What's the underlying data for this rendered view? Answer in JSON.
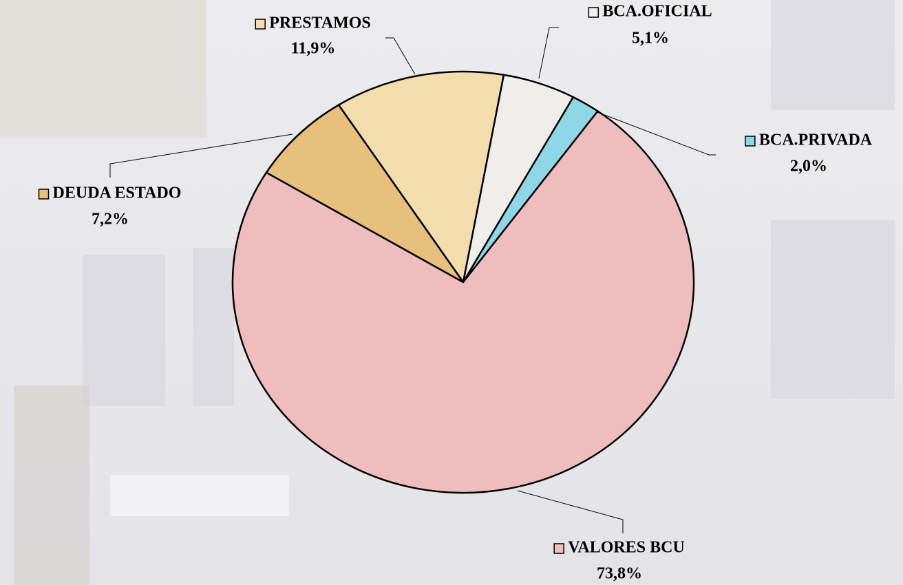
{
  "chart_data": {
    "type": "pie",
    "categories": [
      "PRESTAMOS",
      "BCA.OFICIAL",
      "BCA.PRIVADA",
      "VALORES BCU",
      "DEUDA ESTADO"
    ],
    "values": [
      11.9,
      5.1,
      2.0,
      73.8,
      7.2
    ],
    "value_labels": [
      "11,9%",
      "5,1%",
      "2,0%",
      "73,8%",
      "7,2%"
    ],
    "colors": [
      "#f3dcae",
      "#efeeea",
      "#8fd6e6",
      "#efbdbd",
      "#e6c07c"
    ]
  }
}
